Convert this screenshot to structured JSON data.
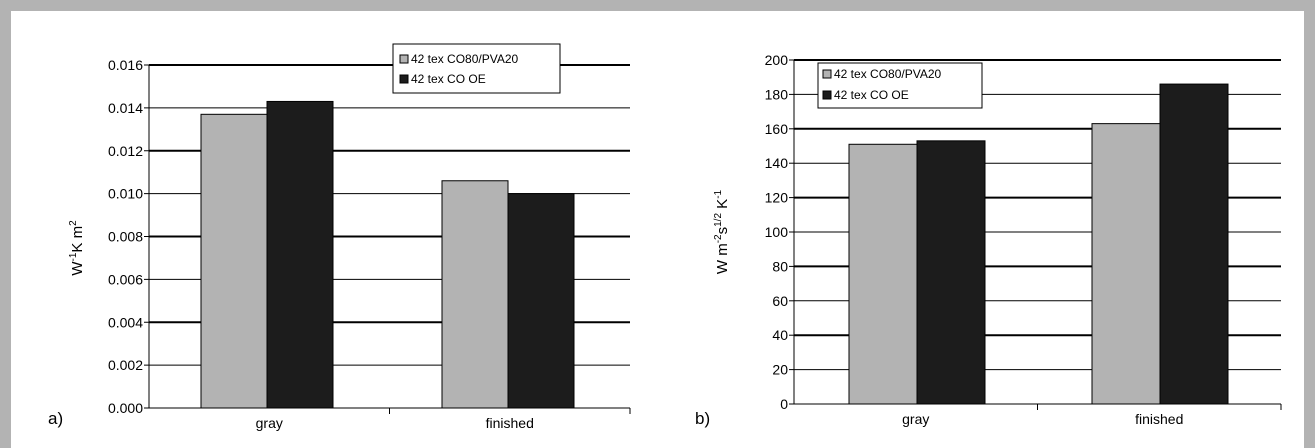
{
  "colors": {
    "series1": "#b3b3b3",
    "series2": "#1c1c1c",
    "frame": "#b3b3b3",
    "grid": "#000000"
  },
  "panels": [
    {
      "tag": "a)",
      "ylabel_main": "W",
      "ylabel_sup1": "-1",
      "ylabel_mid": "K m",
      "ylabel_sup2": "2"
    },
    {
      "tag": "b)",
      "ylabel_main": "W m",
      "ylabel_sup1": "-2",
      "ylabel_mid": "s",
      "ylabel_sup2": "1/2",
      "ylabel_mid2": " K",
      "ylabel_sup3": "-1"
    }
  ],
  "chart_data": [
    {
      "type": "bar",
      "categories": [
        "gray",
        "finished"
      ],
      "series": [
        {
          "name": "42 tex CO80/PVA20",
          "values": [
            0.0137,
            0.0106
          ]
        },
        {
          "name": "42 tex CO OE",
          "values": [
            0.0143,
            0.01
          ]
        }
      ],
      "ylim": [
        0,
        0.016
      ],
      "yticks": [
        "0.000",
        "0.002",
        "0.004",
        "0.006",
        "0.008",
        "0.010",
        "0.012",
        "0.014",
        "0.016"
      ],
      "grid": true,
      "legend": "top-right"
    },
    {
      "type": "bar",
      "categories": [
        "gray",
        "finished"
      ],
      "series": [
        {
          "name": "42 tex CO80/PVA20",
          "values": [
            151,
            163
          ]
        },
        {
          "name": "42 tex CO OE",
          "values": [
            153,
            186
          ]
        }
      ],
      "ylim": [
        0,
        200
      ],
      "yticks": [
        "0",
        "20",
        "40",
        "60",
        "80",
        "100",
        "120",
        "140",
        "160",
        "180",
        "200"
      ],
      "grid": true,
      "legend": "top-left"
    }
  ]
}
